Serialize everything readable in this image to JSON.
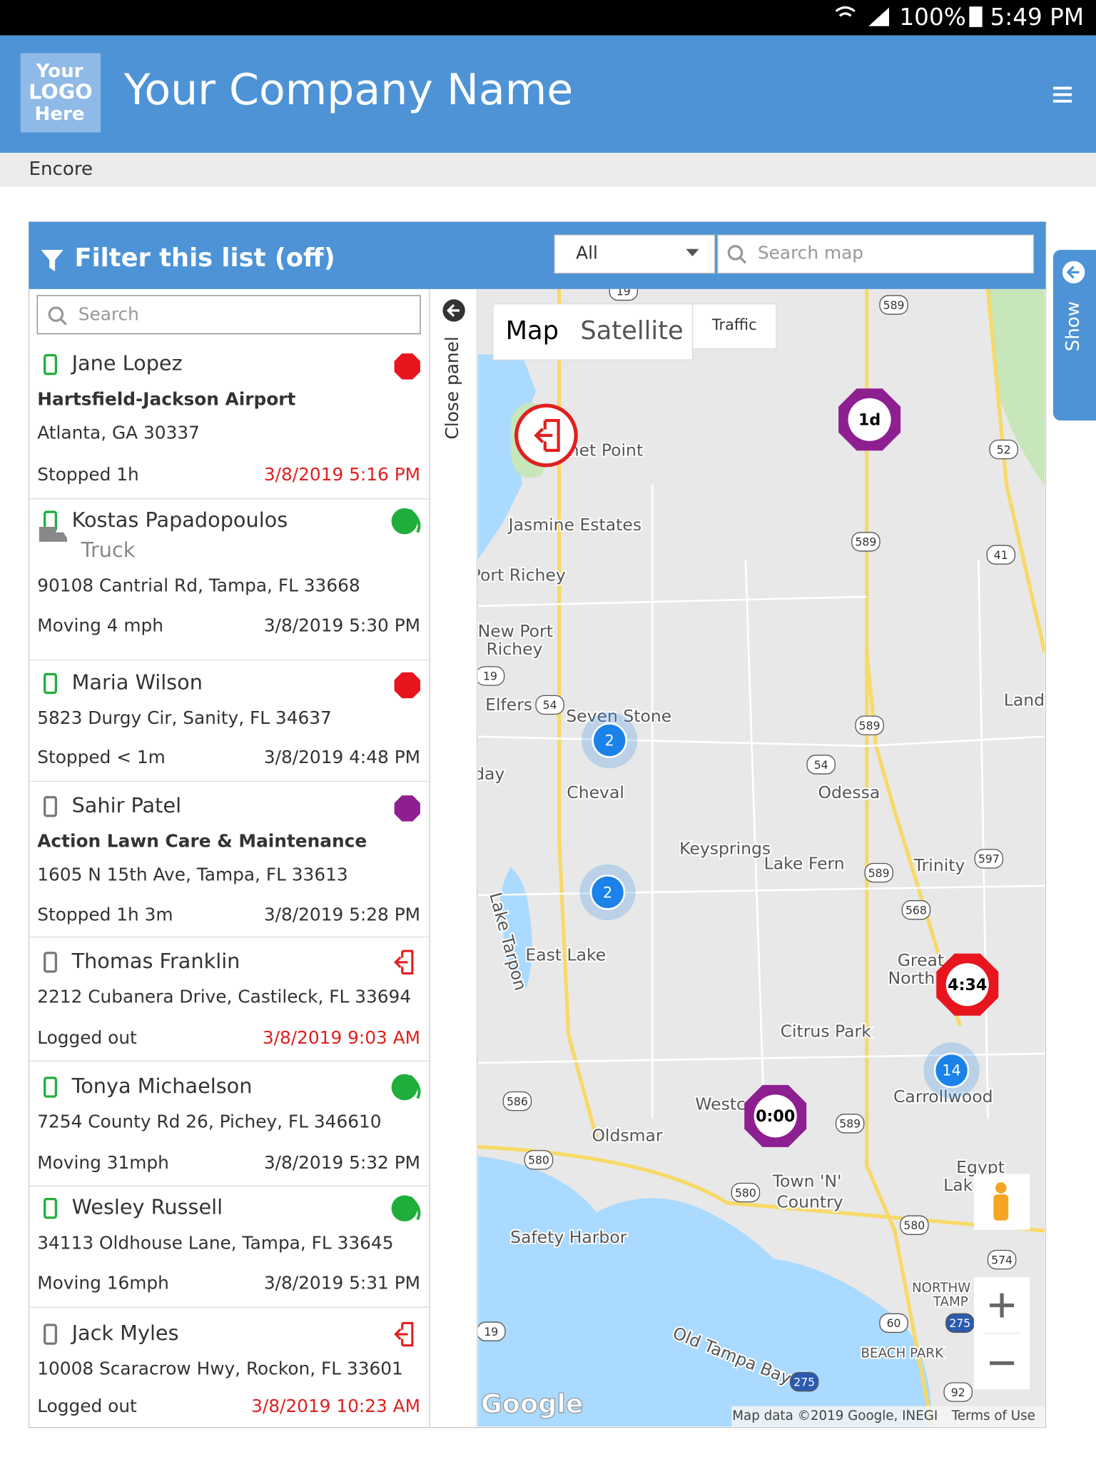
{
  "status_bar": {
    "battery": "100%",
    "time": "5:49 PM"
  },
  "header": {
    "logo": [
      "Your",
      "LOGO",
      "Here"
    ],
    "company": "Your Company Name"
  },
  "breadcrumb": "Encore",
  "panel": {
    "filter_title": "Filter this list (off)",
    "select": "All",
    "search_map_placeholder": "Search map",
    "search_placeholder": "Search",
    "close_panel": "Close panel",
    "show": "Show"
  },
  "drivers": [
    {
      "name": "Jane Lopez",
      "place": "Hartsfield-Jackson Airport",
      "address": "Atlanta, GA 30337",
      "status": "Stopped 1h",
      "time": "3/8/2019 5:16 PM",
      "time_color": "#e02020",
      "device_color": "#1fae3c",
      "icon": "stop",
      "icon_color": "#e8141e"
    },
    {
      "name": "Kostas Papadopoulos",
      "vehicle": "Truck",
      "address": "90108 Cantrial Rd, Tampa, FL 33668",
      "status": "Moving 4 mph",
      "time": "3/8/2019 5:30 PM",
      "time_color": "#333333",
      "device_color": "#1fae3c",
      "icon": "moving",
      "icon_color": "#1fae3c"
    },
    {
      "name": "Maria Wilson",
      "address": "5823 Durgy Cir, Sanity, FL 34637",
      "status": "Stopped < 1m",
      "time": "3/8/2019 4:48 PM",
      "time_color": "#333333",
      "device_color": "#1fae3c",
      "icon": "stop",
      "icon_color": "#e8141e"
    },
    {
      "name": "Sahir Patel",
      "place": "Action Lawn Care & Maintenance",
      "address": "1605 N 15th Ave, Tampa, FL 33613",
      "status": "Stopped 1h 3m",
      "time": "3/8/2019 5:28 PM",
      "time_color": "#333333",
      "device_color": "#777777",
      "icon": "stop",
      "icon_color": "#8e1f91"
    },
    {
      "name": "Thomas Franklin",
      "address": "2212 Cubanera Drive, Castileck, FL 33694",
      "status": "Logged out",
      "time": "3/8/2019 9:03 AM",
      "time_color": "#e02020",
      "device_color": "#777777",
      "icon": "logout",
      "icon_color": "#e02020"
    },
    {
      "name": "Tonya Michaelson",
      "address": "7254 County Rd 26, Pichey, FL 346610",
      "status": "Moving 31mph",
      "time": "3/8/2019 5:32 PM",
      "time_color": "#333333",
      "device_color": "#1fae3c",
      "icon": "moving",
      "icon_color": "#1fae3c"
    },
    {
      "name": "Wesley Russell",
      "address": "34113 Oldhouse Lane, Tampa, FL 33645",
      "status": "Moving 16mph",
      "time": "3/8/2019 5:31 PM",
      "time_color": "#333333",
      "device_color": "#1fae3c",
      "icon": "moving",
      "icon_color": "#1fae3c"
    },
    {
      "name": "Jack Myles",
      "address": "10008 Scaracrow Hwy, Rockon, FL 33601",
      "status": "Logged out",
      "time": "3/8/2019 10:23 AM",
      "time_color": "#e02020",
      "device_color": "#777777",
      "icon": "logout",
      "icon_color": "#e02020"
    }
  ],
  "map": {
    "map_types": [
      "Map",
      "Satellite",
      "Traffic"
    ],
    "places": [
      "net Point",
      "Jasmine Estates",
      "Port Richey",
      "New Port",
      "Richey",
      "Elfers",
      "Seven Stone",
      "day",
      "Cheval",
      "Odessa",
      "Keysprings",
      "Lake Fern",
      "Trinity",
      "East Lake",
      "Lake Tarpon",
      "Great",
      "North",
      "Citrus Park",
      "Carrollwood",
      "Westc",
      "Oldsmar",
      "Town 'N'",
      "Country",
      "Egypt",
      "Lak",
      "Safety Harbor",
      "NORTHW",
      "TAMP",
      "BEACH PARK",
      "Old Tampa Bay",
      "Land"
    ],
    "roads": [
      19,
      589,
      52,
      589,
      41,
      19,
      54,
      589,
      54,
      597,
      589,
      568,
      586,
      580,
      589,
      580,
      580,
      574,
      60,
      275,
      19,
      275,
      92
    ],
    "markers": [
      {
        "label": "1d",
        "color": "#8e1f91"
      },
      {
        "label": "4:34",
        "color": "#e8141e"
      },
      {
        "label": "0:00",
        "color": "#8e1f91"
      }
    ],
    "clusters": [
      2,
      2,
      14
    ],
    "logo": "Google",
    "attribution": "Map data ©2019 Google, INEGI",
    "terms": "Terms of Use"
  }
}
